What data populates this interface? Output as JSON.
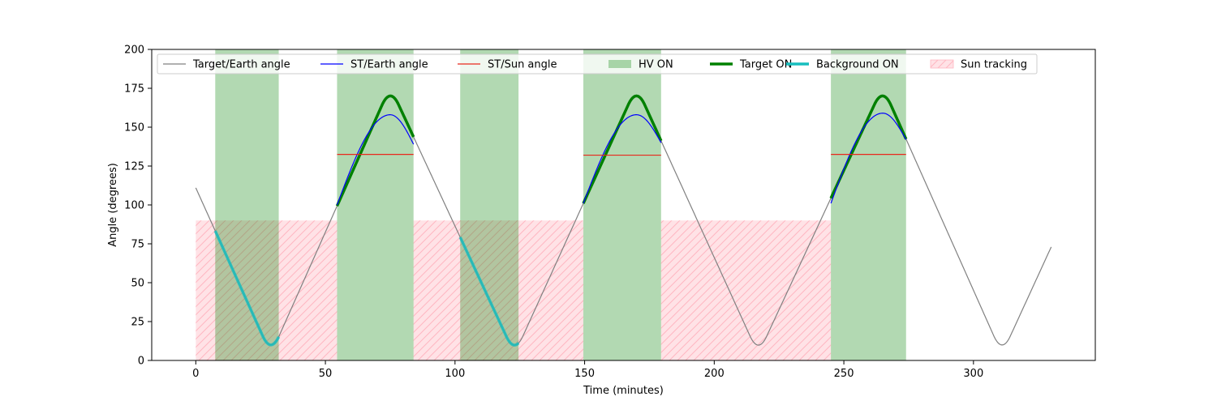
{
  "chart_data": {
    "type": "line",
    "title": "",
    "xlabel": "Time (minutes)",
    "ylabel": "Angle (degrees)",
    "xlim": [
      -17,
      347
    ],
    "ylim": [
      0,
      200
    ],
    "xticks": [
      0,
      50,
      100,
      150,
      200,
      250,
      300
    ],
    "yticks": [
      0,
      25,
      50,
      75,
      100,
      125,
      150,
      175,
      200
    ],
    "grid": false,
    "legend_position": "top",
    "colors": {
      "target_earth": "#808080",
      "st_earth": "#0000ff",
      "st_sun": "#e8291c",
      "hv_on": "#008000",
      "target_on": "#008000",
      "background_on": "#17bebe",
      "sun_tracking": "#ffb6c1"
    },
    "legend": [
      {
        "label": "Target/Earth angle",
        "kind": "line",
        "key": "target_earth"
      },
      {
        "label": "ST/Earth angle",
        "kind": "line",
        "key": "st_earth"
      },
      {
        "label": "ST/Sun angle",
        "kind": "line",
        "key": "st_sun"
      },
      {
        "label": "HV ON",
        "kind": "patch",
        "key": "hv_on"
      },
      {
        "label": "Target ON",
        "kind": "thickline",
        "key": "target_on"
      },
      {
        "label": "Background ON",
        "kind": "thickline",
        "key": "background_on"
      },
      {
        "label": "Sun tracking",
        "kind": "hatch",
        "key": "sun_tracking"
      }
    ],
    "series": [
      {
        "name": "Target/Earth angle",
        "x": [
          0,
          29,
          75,
          123,
          170,
          217,
          265,
          311,
          330
        ],
        "y": [
          111,
          4,
          176,
          4,
          176,
          4,
          176,
          4,
          73
        ]
      },
      {
        "name": "ST/Earth angle",
        "segments": [
          {
            "x": [
              54.5,
              75,
              84
            ],
            "y": [
              100,
              158,
              139
            ]
          },
          {
            "x": [
              149.5,
              170,
              179.5
            ],
            "y": [
              101,
              158,
              140
            ]
          },
          {
            "name_hidden": true,
            "x": [
              245,
              265,
              274
            ],
            "y": [
              101,
              159,
              142
            ]
          }
        ]
      },
      {
        "name": "ST/Sun angle",
        "segments": [
          {
            "x": [
              54.5,
              84
            ],
            "y": [
              132.5,
              132.5
            ]
          },
          {
            "x": [
              149.5,
              179.5
            ],
            "y": [
              132,
              132
            ]
          },
          {
            "x": [
              245,
              274
            ],
            "y": [
              132.5,
              132.5
            ]
          }
        ]
      },
      {
        "name": "HV ON",
        "intervals": [
          [
            7.5,
            32
          ],
          [
            54.5,
            84
          ],
          [
            102,
            124.5
          ],
          [
            149.5,
            179.5
          ],
          [
            245,
            274
          ]
        ]
      },
      {
        "name": "Target ON",
        "intervals": [
          [
            54.5,
            84
          ],
          [
            149.5,
            179.5
          ],
          [
            245,
            274
          ]
        ]
      },
      {
        "name": "Background ON",
        "intervals": [
          [
            7.5,
            32
          ],
          [
            102,
            124.5
          ]
        ]
      },
      {
        "name": "Sun tracking",
        "y_max": 90,
        "intervals": [
          [
            0,
            54.5
          ],
          [
            84,
            149.5
          ],
          [
            179.5,
            245
          ]
        ]
      }
    ]
  }
}
